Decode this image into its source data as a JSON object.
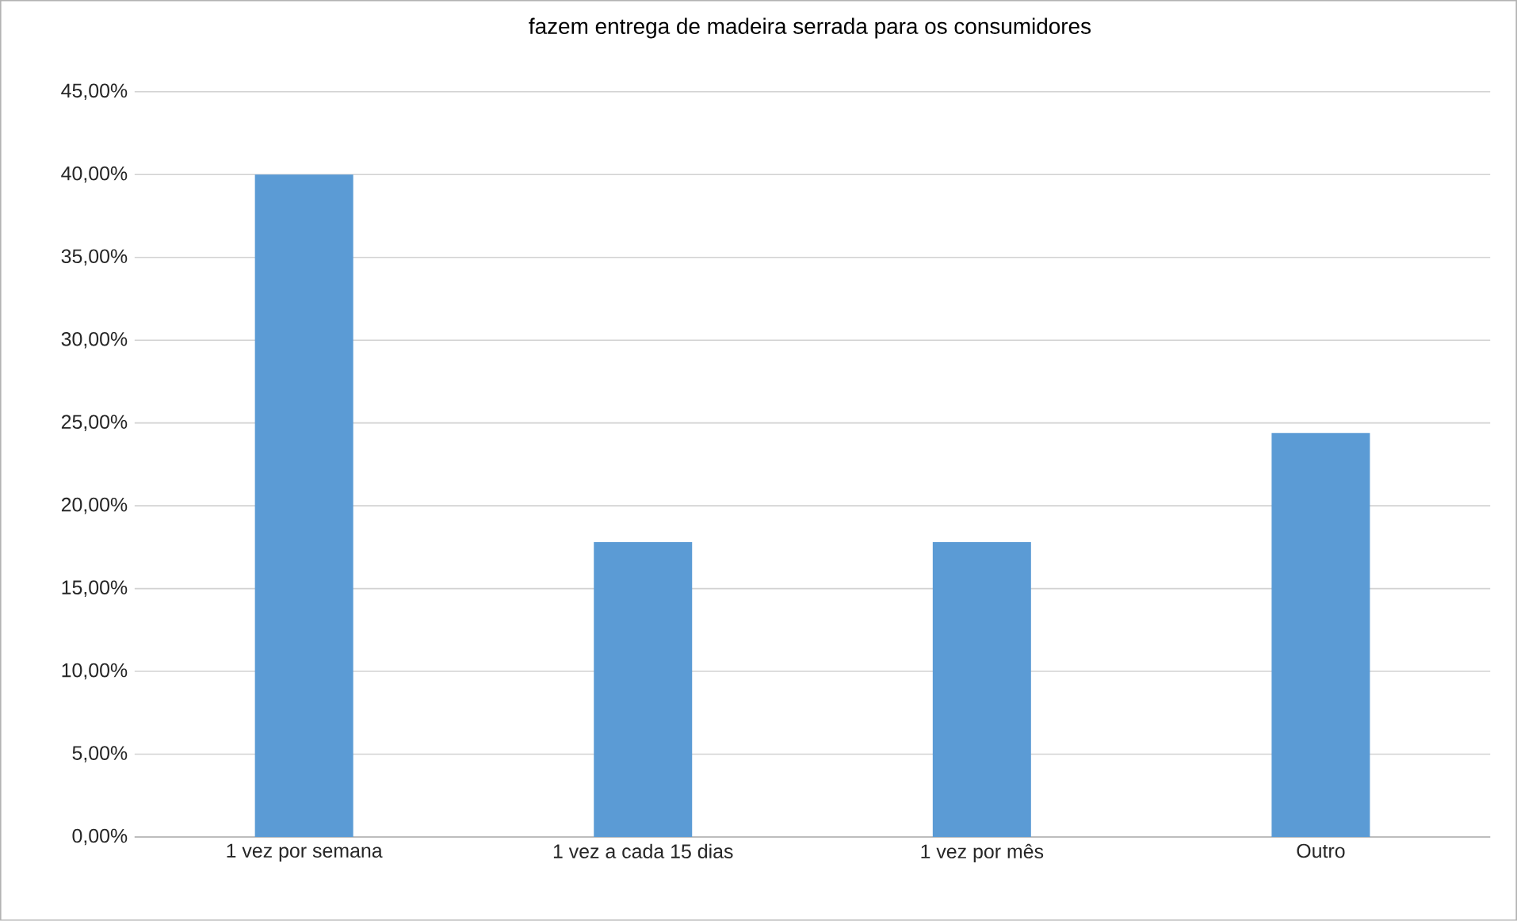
{
  "chart_data": {
    "type": "bar",
    "title": "fazem entrega de madeira serrada para os consumidores",
    "categories": [
      "1 vez por semana",
      "1 vez a cada 15 dias",
      "1 vez por mês",
      "Outro"
    ],
    "values": [
      40.0,
      17.8,
      17.8,
      24.4
    ],
    "color": "#5b9bd5",
    "ylim": [
      0,
      45
    ],
    "yticks": [
      {
        "value": 0,
        "label": "0,00%"
      },
      {
        "value": 5,
        "label": "5,00%"
      },
      {
        "value": 10,
        "label": "10,00%"
      },
      {
        "value": 15,
        "label": "15,00%"
      },
      {
        "value": 20,
        "label": "20,00%"
      },
      {
        "value": 25,
        "label": "25,00%"
      },
      {
        "value": 30,
        "label": "30,00%"
      },
      {
        "value": 35,
        "label": "35,00%"
      },
      {
        "value": 40,
        "label": "40,00%"
      },
      {
        "value": 45,
        "label": "45,00%"
      }
    ],
    "grid": "y"
  }
}
